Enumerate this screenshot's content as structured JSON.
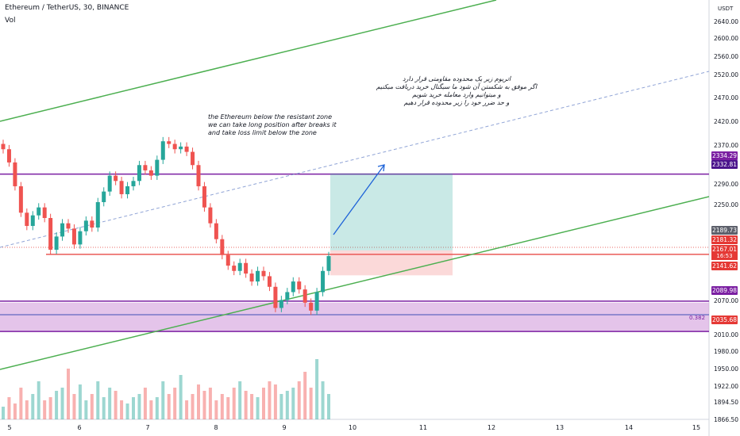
{
  "header": {
    "title": "Ethereum / TetherUS, 30, BINANCE",
    "vol_label": "Vol"
  },
  "axis": {
    "currency": "USDT",
    "price_ticks": [
      "2640.00",
      "2600.00",
      "2560.00",
      "2520.00",
      "2470.00",
      "2420.00",
      "2370.00",
      "2290.00",
      "2250.00",
      "2070.00",
      "2010.00",
      "1980.00",
      "1950.00",
      "1922.00",
      "1894.50",
      "1866.50"
    ],
    "x_ticks": [
      "5",
      "6",
      "7",
      "8",
      "9",
      "10",
      "11",
      "12",
      "13",
      "14",
      "15"
    ]
  },
  "price_labels": [
    {
      "text": "2334.29",
      "color": "#7b1fa2"
    },
    {
      "text": "2332.81",
      "color": "#4a148c"
    },
    {
      "text": "2189.73",
      "color": "#5d606b"
    },
    {
      "text": "2181.32",
      "color": "#e53935"
    },
    {
      "text": "2167.01",
      "color": "#e53935"
    },
    {
      "text": "2141.62",
      "color": "#e53935"
    },
    {
      "text": "2089.98",
      "color": "#7b1fa2"
    },
    {
      "text": "2035.68",
      "color": "#e53935"
    }
  ],
  "countdown": "16:53",
  "zone_level_label": "0.382",
  "annotations": {
    "english": [
      "the Ethereum below the resistant zone",
      "we can take long position after breaks it",
      "and take loss limit below the zone"
    ],
    "persian": [
      "اتریوم زیر یک محدوده مقاومتی قرار دارد",
      "اگر موفق به شکستن آن شود ما سیگنال خرید دریافت میکنیم",
      "و میتوانیم وارد معامله خرید شویم",
      "و حد ضرر خود را زیر محدوده قرار دهیم"
    ]
  },
  "colors": {
    "up": "#26a69a",
    "down": "#ef5350",
    "resistance": "#7b1fa2",
    "support_zone": "#ce93d8",
    "trendline": "#4caf50",
    "entry_line": "#e53935",
    "projection": "#1e63d8"
  },
  "chart_data": {
    "type": "candlestick",
    "symbol": "Ethereum / TetherUS",
    "interval": "30",
    "exchange": "BINANCE",
    "ylim": [
      1866.5,
      2650
    ],
    "close_series": [
      2380,
      2355,
      2310,
      2260,
      2235,
      2255,
      2270,
      2250,
      2190,
      2215,
      2240,
      2230,
      2200,
      2225,
      2245,
      2232,
      2280,
      2300,
      2330,
      2320,
      2295,
      2310,
      2320,
      2350,
      2340,
      2330,
      2360,
      2395,
      2390,
      2380,
      2385,
      2375,
      2350,
      2310,
      2270,
      2240,
      2210,
      2180,
      2160,
      2150,
      2165,
      2145,
      2130,
      2150,
      2140,
      2120,
      2080,
      2095,
      2110,
      2130,
      2115,
      2090,
      2075,
      2110,
      2150,
      2178
    ],
    "series": [
      {
        "name": "Vol",
        "kind": "volume_bars",
        "values": [
          0.2,
          0.35,
          0.25,
          0.5,
          0.3,
          0.4,
          0.6,
          0.3,
          0.35,
          0.45,
          0.5,
          0.8,
          0.4,
          0.55,
          0.3,
          0.4,
          0.6,
          0.35,
          0.5,
          0.45,
          0.3,
          0.25,
          0.35,
          0.4,
          0.5,
          0.3,
          0.35,
          0.6,
          0.4,
          0.5,
          0.7,
          0.3,
          0.4,
          0.55,
          0.45,
          0.5,
          0.3,
          0.4,
          0.35,
          0.5,
          0.6,
          0.45,
          0.4,
          0.35,
          0.5,
          0.6,
          0.55,
          0.4,
          0.45,
          0.5,
          0.6,
          0.75,
          0.5,
          0.95,
          0.6,
          0.4
        ]
      }
    ],
    "levels": [
      {
        "name": "resistance",
        "value": 2333
      },
      {
        "name": "entry",
        "value": 2181.32
      },
      {
        "name": "stop",
        "value": 2141.62
      },
      {
        "name": "zone_top",
        "value": 2089.98
      },
      {
        "name": "zone_bottom",
        "value": 2035.68
      }
    ],
    "position": {
      "type": "long",
      "entry": 2181.32,
      "target": 2334.29,
      "stop": 2141.62
    }
  }
}
